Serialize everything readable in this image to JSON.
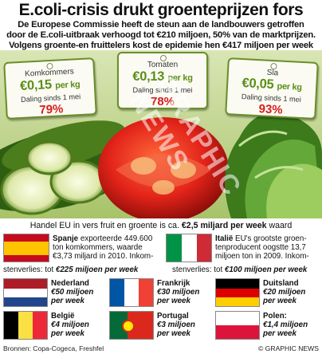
{
  "headline": "E.coli-crisis drukt groenteprijzen fors",
  "intro": [
    "De Europese Commissie heeft de steun aan de landbouwers getroffen",
    "door de E.coli-uitbraak verhoogd tot €210 miljoen, 50% van de marktprijzen.",
    "Volgens groente-en fruittelers kost de epidemie hen €417 miljoen per week"
  ],
  "tags": [
    {
      "name": "Komkommers",
      "price": "€0,15",
      "unit": "per kg",
      "drop": "Daling sinds 1 mei",
      "pct": "79%"
    },
    {
      "name": "Tomaten",
      "price": "€0,13",
      "unit": "per kg",
      "drop": "Daling sinds 1 mei",
      "pct": "78%"
    },
    {
      "name": "Sla",
      "price": "€0,05",
      "unit": "per kg",
      "drop": "Daling sinds 1 mei",
      "pct": "93%"
    }
  ],
  "watermark": "GRAPHIC NEWS",
  "trade": {
    "prefix": "Handel EU in vers fruit en groente is ca. ",
    "amount": "€2,5 miljard per week",
    "suffix": " waard"
  },
  "spain": {
    "name": "Spanje",
    "line1": " exporteerde 449.600",
    "line2": "ton komkommers, waarde",
    "line3": "€3,73 miljard in 2010. Inkom-",
    "line4": "stenverlies: tot ",
    "loss": "€225 miljoen per week"
  },
  "italy": {
    "name": "Italië",
    "line1": " EU's grootste groen-",
    "line2": "tenproducent oogstte 13,7",
    "line3": "miljoen ton in 2009. Inkom-",
    "line4": "stenverlies: tot ",
    "loss": "€100 miljoen per week"
  },
  "small_countries": [
    {
      "name": "Nederland",
      "l1": "€50 miljoen",
      "l2": "per week"
    },
    {
      "name": "Frankrijk",
      "l1": "€30 miljoen",
      "l2": "per week"
    },
    {
      "name": "Duitsland",
      "l1": "€20 miljoen",
      "l2": "per week"
    },
    {
      "name": "België",
      "l1": "€4 miljoen",
      "l2": "per week"
    },
    {
      "name": "Portugal",
      "l1": "€3 miljoen",
      "l2": "per week"
    },
    {
      "name": "Polen:",
      "l1": "€1,4 miljoen",
      "l2": "per week"
    }
  ],
  "footer": {
    "sources": "Bronnen: Copa-Cogeca, Freshfel",
    "credit": "© GRAPHIC NEWS"
  },
  "colors": {
    "tag_border": "#6a8f2a",
    "price_green": "#5b8e17",
    "percent_red": "#d61d1d"
  }
}
